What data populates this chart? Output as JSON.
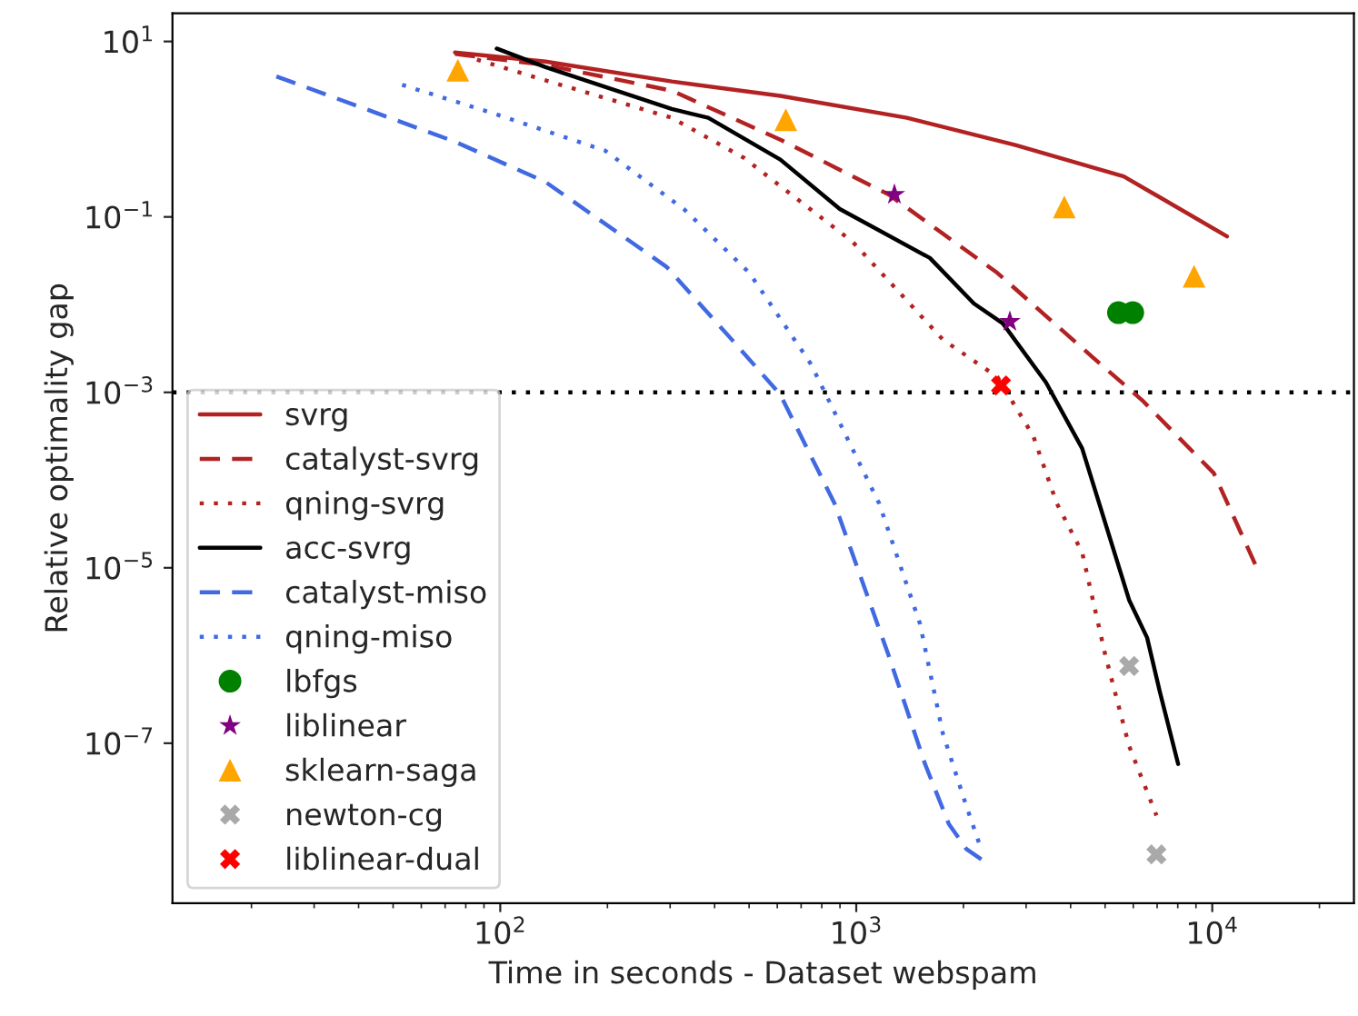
{
  "chart_data": {
    "type": "line",
    "xlabel": "Time in seconds - Dataset webspam",
    "ylabel": "Relative optimality gap",
    "log": "xy",
    "grid": false,
    "legend": "lower left",
    "xlim": [
      12,
      25000
    ],
    "ylim": [
      1.5e-09,
      21
    ],
    "xticks": [
      {
        "value": 100,
        "label": "10$^{2}$"
      },
      {
        "value": 1000,
        "label": "10$^{3}$"
      },
      {
        "value": 10000,
        "label": "10$^{4}$"
      }
    ],
    "yticks": [
      {
        "value": 1e-07,
        "label": "10$^{−7}$"
      },
      {
        "value": 1e-05,
        "label": "10$^{−5}$"
      },
      {
        "value": 0.001,
        "label": "10$^{−3}$"
      },
      {
        "value": 0.1,
        "label": "10$^{−1}$"
      },
      {
        "value": 10,
        "label": "10$^{1}$"
      }
    ],
    "ref_lines": [
      {
        "axis": "y",
        "value": 0.001,
        "color": "#000000",
        "line_style": "dotted"
      }
    ],
    "series": [
      {
        "name": "svrg",
        "line_style": "solid",
        "color": "#b22222",
        "x": [
          74.6,
          134,
          303,
          612,
          1387,
          2800,
          5640,
          11000
        ],
        "values": [
          7.5,
          5.9,
          3.5,
          2.4,
          1.35,
          0.66,
          0.29,
          0.06
        ]
      },
      {
        "name": "catalyst-svrg",
        "line_style": "dashed",
        "color": "#b22222",
        "x": [
          74.6,
          134,
          303,
          612,
          1233,
          2490,
          4620,
          6340,
          10100,
          13200
        ],
        "values": [
          7.2,
          5.4,
          2.75,
          0.76,
          0.18,
          0.023,
          0.0025,
          0.00082,
          0.00012,
          1.1e-05
        ]
      },
      {
        "name": "qning-svrg",
        "line_style": "dotted",
        "color": "#b22222",
        "x": [
          86,
          123,
          303,
          484,
          977,
          1750,
          2490,
          3140,
          3660,
          4310,
          5010,
          5840,
          6970
        ],
        "values": [
          6.2,
          4.0,
          1.35,
          0.47,
          0.052,
          0.004,
          0.0015,
          0.00032,
          5.4e-05,
          1.5e-05,
          1e-06,
          9.3e-08,
          1.5e-08
        ]
      },
      {
        "name": "acc-svrg",
        "line_style": "solid",
        "color": "#000000",
        "x": [
          97.7,
          134,
          303,
          384,
          612,
          899,
          1610,
          2140,
          2580,
          3410,
          4310,
          5840,
          6560,
          7120,
          8020
        ],
        "values": [
          8.3,
          5.1,
          1.7,
          1.35,
          0.45,
          0.123,
          0.034,
          0.0103,
          0.0061,
          0.0013,
          0.00023,
          4.3e-06,
          1.6e-06,
          3.9e-07,
          5.8e-08
        ]
      },
      {
        "name": "catalyst-miso",
        "line_style": "dashed",
        "color": "#4169e1",
        "x": [
          23.5,
          74.6,
          134,
          293,
          447,
          612,
          869,
          944,
          1233,
          1560,
          1820,
          2040,
          2270
        ],
        "values": [
          4.0,
          0.72,
          0.25,
          0.027,
          0.004,
          0.00094,
          5.4e-05,
          2.1e-05,
          1e-06,
          5.8e-08,
          1.2e-08,
          6.2e-09,
          4.6e-09
        ]
      },
      {
        "name": "qning-miso",
        "line_style": "dotted",
        "color": "#4169e1",
        "x": [
          53,
          94,
          197,
          330,
          501,
          746,
          1160,
          1510,
          1750,
          2040,
          2210
        ],
        "values": [
          3.2,
          1.55,
          0.57,
          0.12,
          0.023,
          0.0021,
          5.4e-05,
          2.3e-06,
          1.3e-07,
          1.9e-08,
          7.4e-09
        ]
      },
      {
        "name": "lbfgs",
        "type": "scatter",
        "marker": "circle",
        "color": "#008000",
        "x": [
          5450,
          5980
        ],
        "values": [
          0.0081,
          0.0081
        ]
      },
      {
        "name": "liblinear",
        "type": "scatter",
        "marker": "star",
        "color": "#800080",
        "x": [
          1280,
          2700
        ],
        "values": [
          0.18,
          0.0064
        ]
      },
      {
        "name": "sklearn-saga",
        "type": "scatter",
        "marker": "triangle",
        "color": "#ffa500",
        "x": [
          76,
          634,
          3840,
          8890
        ],
        "values": [
          4.7,
          1.28,
          0.13,
          0.021
        ]
      },
      {
        "name": "newton-cg",
        "type": "scatter",
        "marker": "cross",
        "color": "#a9a9a9",
        "x": [
          5840,
          6970
        ],
        "values": [
          7.6e-07,
          5.4e-09
        ]
      },
      {
        "name": "liblinear-dual",
        "type": "scatter",
        "marker": "cross",
        "color": "#ff0000",
        "x": [
          2550
        ],
        "values": [
          0.0012
        ]
      }
    ]
  }
}
